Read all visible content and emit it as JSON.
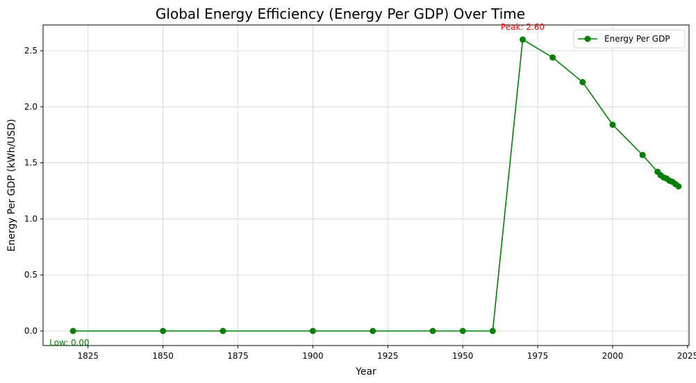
{
  "chart_data": {
    "type": "line",
    "title": "Global Energy Efficiency (Energy Per GDP) Over Time",
    "xlabel": "Year",
    "ylabel": "Energy Per GDP (kWh/USD)",
    "xlim": [
      1810,
      2025.5
    ],
    "ylim": [
      -0.13,
      2.73
    ],
    "xticks": [
      1825,
      1850,
      1875,
      1900,
      1925,
      1950,
      1975,
      2000,
      2025
    ],
    "yticks": [
      0.0,
      0.5,
      1.0,
      1.5,
      2.0,
      2.5
    ],
    "xtick_labels": [
      "1825",
      "1850",
      "1875",
      "1900",
      "1925",
      "1950",
      "1975",
      "2000",
      "2025"
    ],
    "ytick_labels": [
      "0.0",
      "0.5",
      "1.0",
      "1.5",
      "2.0",
      "2.5"
    ],
    "grid": true,
    "legend_position": "top-right",
    "series": [
      {
        "name": "Energy Per GDP",
        "color": "#008000",
        "marker": "circle",
        "x": [
          1820,
          1850,
          1870,
          1900,
          1920,
          1940,
          1950,
          1960,
          1970,
          1980,
          1990,
          2000,
          2010,
          2015,
          2016,
          2017,
          2018,
          2019,
          2020,
          2021,
          2022
        ],
        "y": [
          0.0,
          0.0,
          0.0,
          0.0,
          0.0,
          0.0,
          0.0,
          0.0,
          2.6,
          2.44,
          2.22,
          1.84,
          1.57,
          1.42,
          1.39,
          1.37,
          1.36,
          1.34,
          1.33,
          1.31,
          1.29
        ]
      }
    ],
    "annotations": [
      {
        "name": "peak",
        "text": "Peak: 2.60",
        "x": 1970,
        "y": 2.6,
        "color": "#ff0000"
      },
      {
        "name": "low",
        "text": "Low: 0.00",
        "x": 1820,
        "y": 0.0,
        "color": "#008000"
      }
    ]
  }
}
